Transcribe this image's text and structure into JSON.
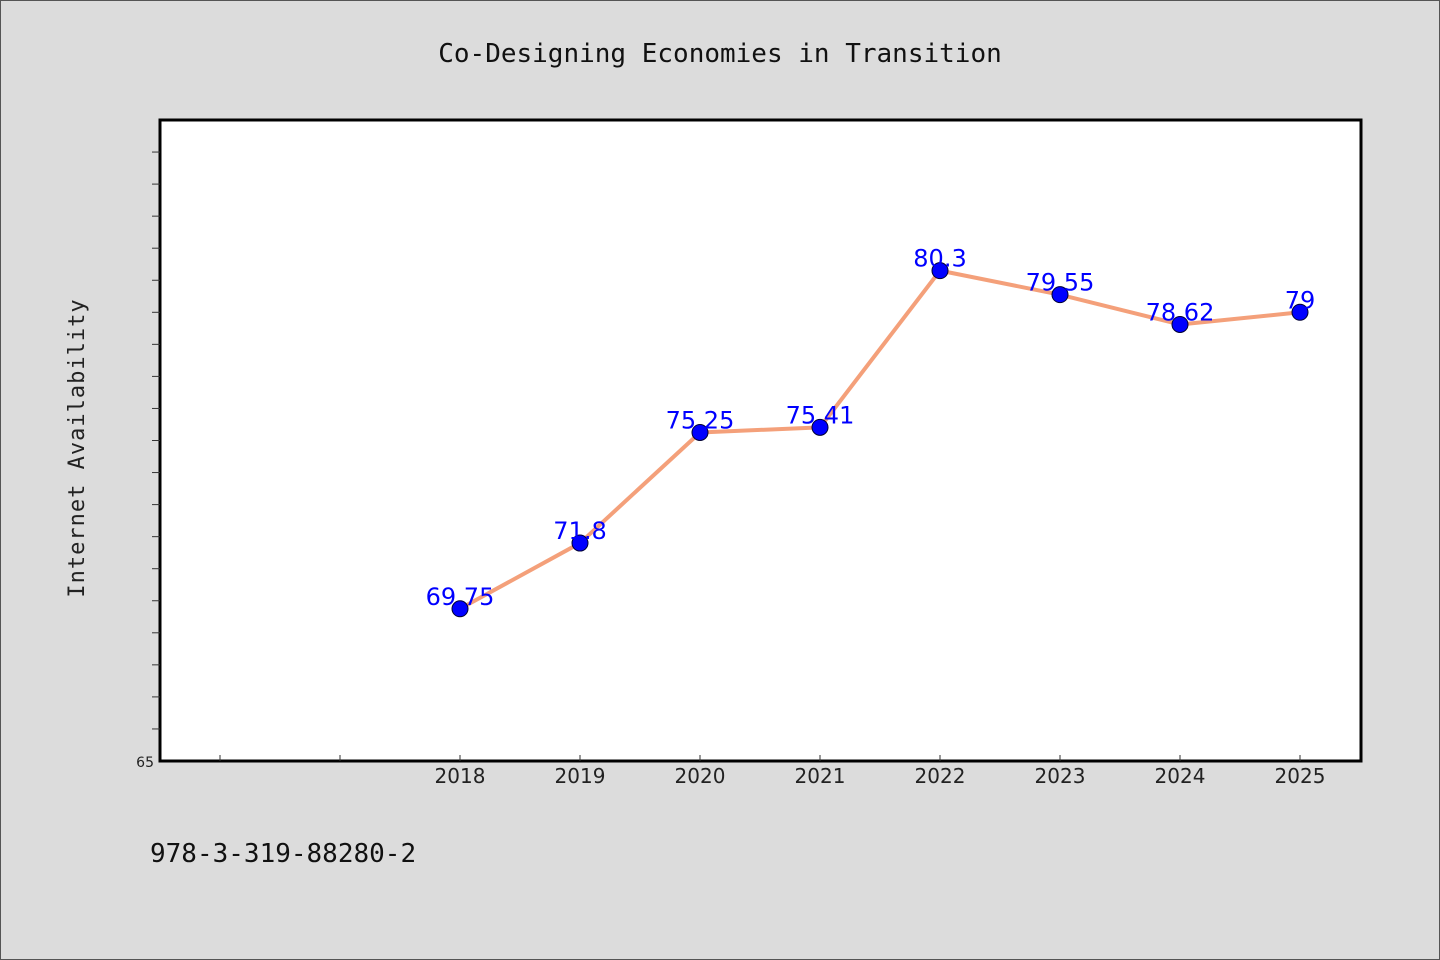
{
  "chart_data": {
    "type": "line",
    "title": "Co-Designing Economies in Transition",
    "ylabel": "Internet Availability",
    "xlabel": "",
    "categories": [
      "2018",
      "2019",
      "2020",
      "2021",
      "2022",
      "2023",
      "2024",
      "2025"
    ],
    "values": [
      69.75,
      71.8,
      75.25,
      75.41,
      80.3,
      79.55,
      78.62,
      79
    ],
    "data_labels": [
      "69.75",
      "71.8",
      "75.25",
      "75.41",
      "80.3",
      "79.55",
      "78.62",
      "79"
    ],
    "ylim": [
      65,
      85
    ],
    "ytick_labels": [
      "65"
    ],
    "line_color": "#f4a07a",
    "marker_color": "#0000ff",
    "label_color": "#0000ff",
    "grid": false,
    "legend": "none"
  },
  "footer": {
    "isbn": "978-3-319-88280-2"
  }
}
